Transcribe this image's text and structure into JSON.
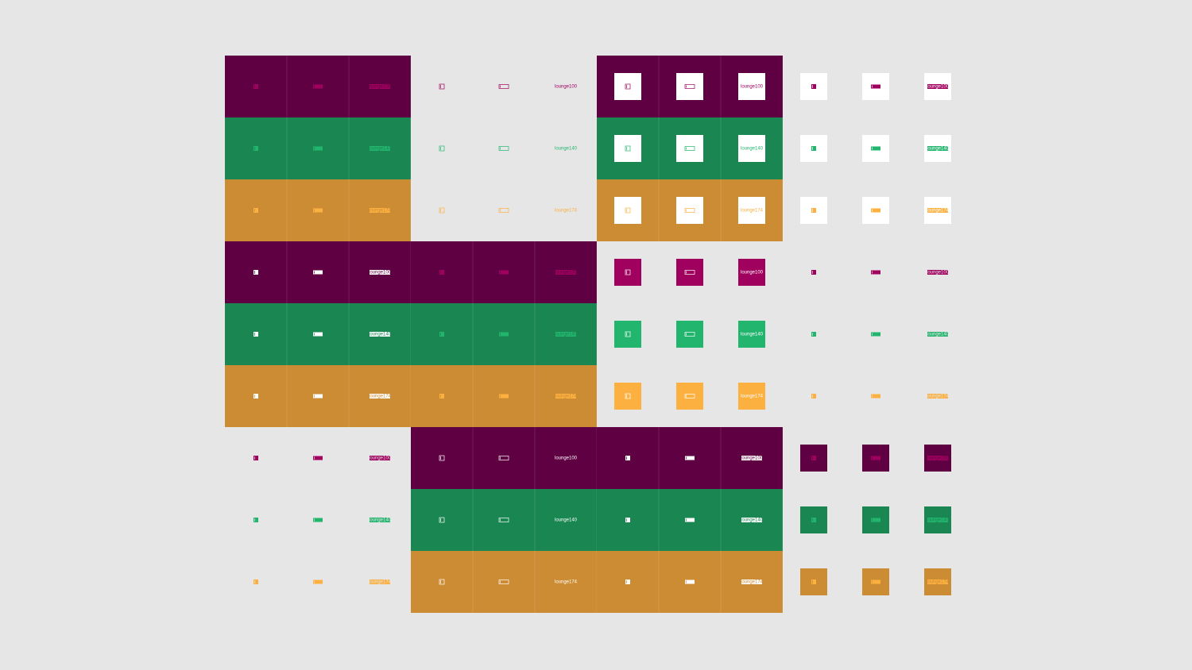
{
  "wordmarks": [
    "lounge100",
    "lounge140",
    "lounge174"
  ]
}
